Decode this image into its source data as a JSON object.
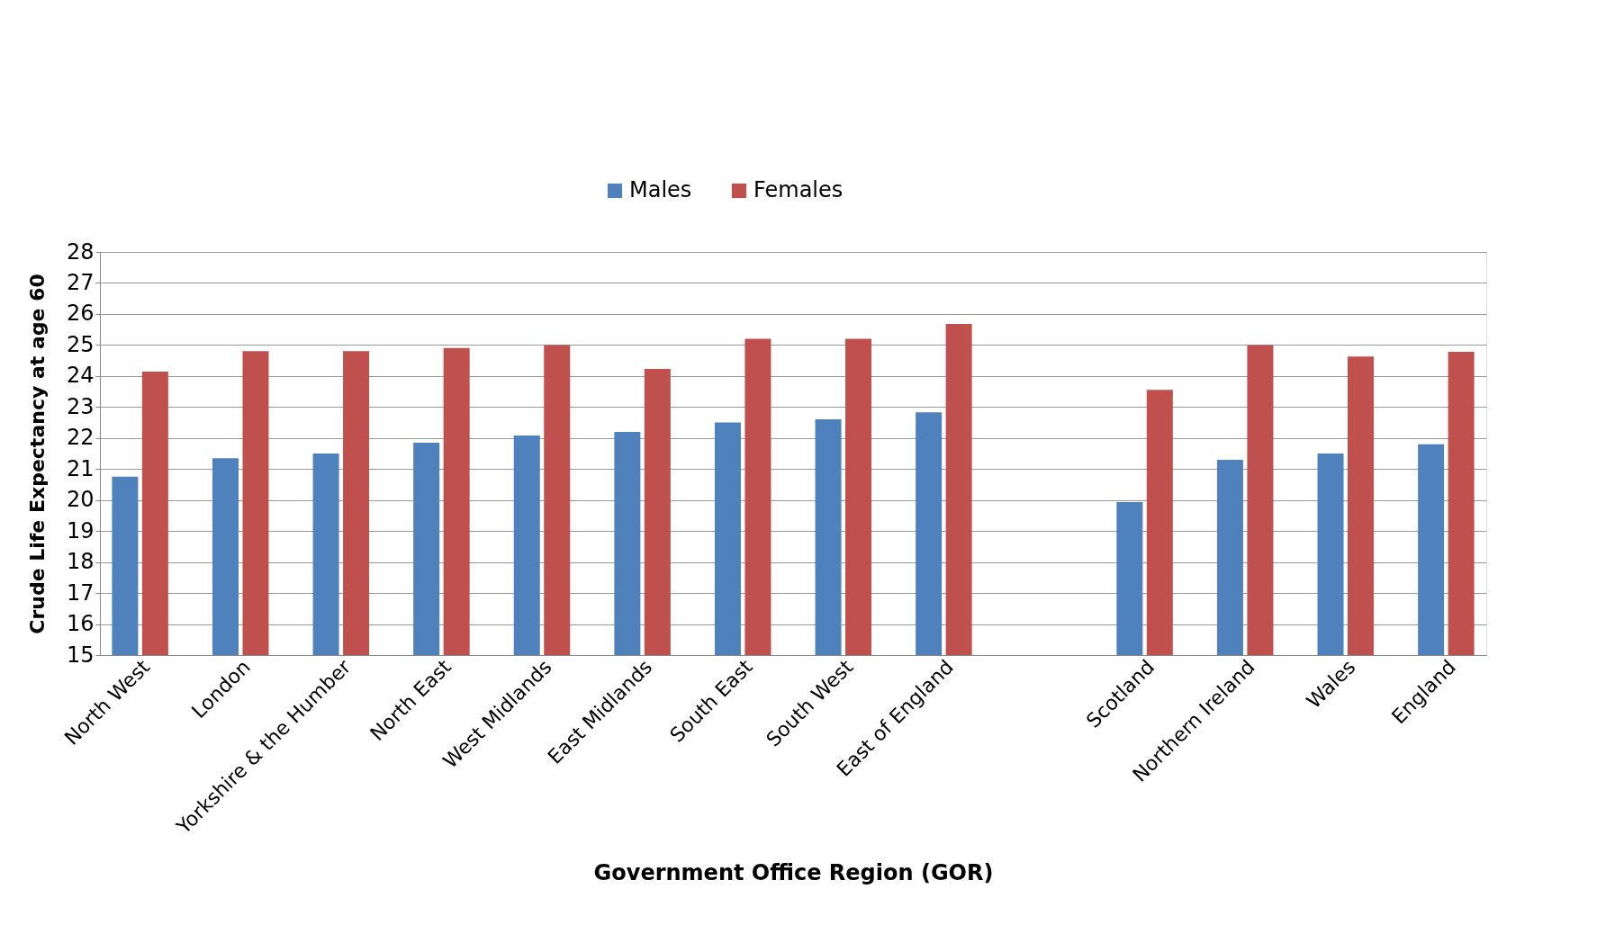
{
  "chart_data": {
    "type": "bar",
    "xlabel": "Government Office Region (GOR)",
    "ylabel": "Crude Life Expectancy at age 60",
    "categories": [
      "North West",
      "London",
      "Yorkshire & the Humber",
      "North East",
      "West Midlands",
      "East Midlands",
      "South East",
      "South West",
      "East of England",
      null,
      "Scotland",
      "Northern Ireland",
      "Wales",
      "England"
    ],
    "series": [
      {
        "name": "Males",
        "color": "#4f81bd",
        "values": [
          20.75,
          21.35,
          21.5,
          21.85,
          22.08,
          22.2,
          22.5,
          22.6,
          22.83,
          null,
          19.93,
          21.3,
          21.5,
          21.8
        ]
      },
      {
        "name": "Females",
        "color": "#c0504d",
        "values": [
          24.14,
          24.8,
          24.8,
          24.9,
          25.0,
          24.23,
          25.2,
          25.2,
          25.68,
          null,
          23.55,
          25.0,
          24.63,
          24.78
        ]
      }
    ],
    "ylim": [
      15,
      28
    ],
    "yticks": [
      15,
      16,
      17,
      18,
      19,
      20,
      21,
      22,
      23,
      24,
      25,
      26,
      27,
      28
    ],
    "grid": "y",
    "legend": "top"
  }
}
